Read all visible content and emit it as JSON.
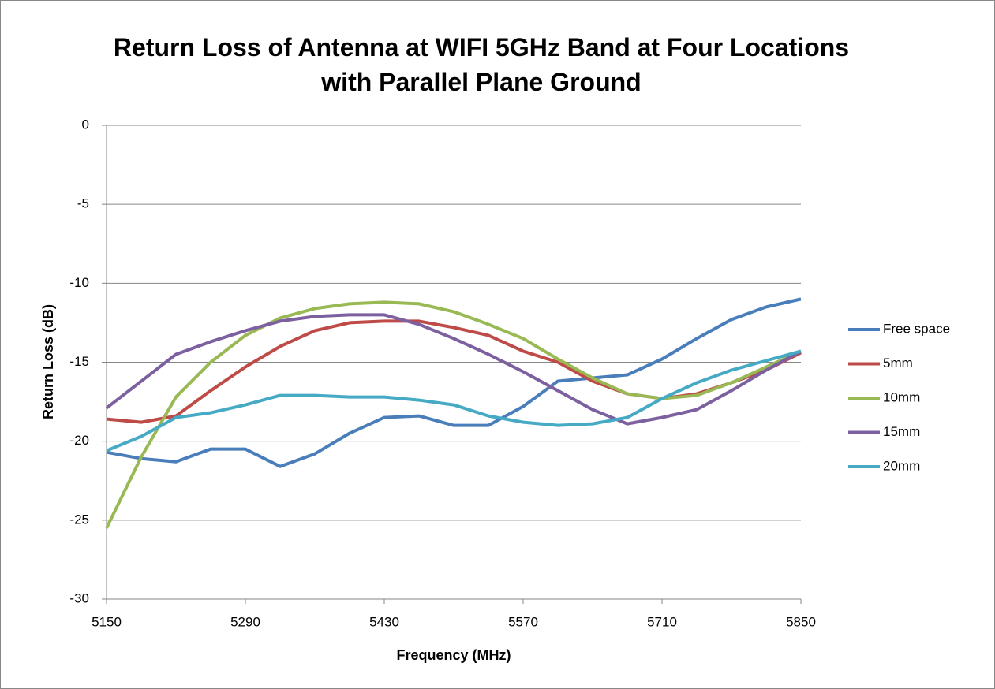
{
  "chart_data": {
    "type": "line",
    "title": "Return Loss of Antenna at WIFI 5GHz Band at Four Locations with Parallel Plane Ground",
    "x_label": "Frequency (MHz)",
    "y_label": "Return Loss (dB)",
    "x": [
      5150,
      5185,
      5220,
      5255,
      5290,
      5325,
      5360,
      5395,
      5430,
      5465,
      5500,
      5535,
      5570,
      5605,
      5640,
      5675,
      5710,
      5745,
      5780,
      5815,
      5850
    ],
    "series": [
      {
        "name": "Free space",
        "color": "#4a7ebb",
        "values": [
          -20.7,
          -21.1,
          -21.3,
          -20.5,
          -20.5,
          -21.6,
          -20.8,
          -19.5,
          -18.5,
          -18.4,
          -19.0,
          -19.0,
          -17.8,
          -16.2,
          -16.0,
          -15.8,
          -14.8,
          -13.5,
          -12.3,
          -11.5,
          -11.0
        ]
      },
      {
        "name": "5mm",
        "color": "#be4b48",
        "values": [
          -18.6,
          -18.8,
          -18.4,
          -16.8,
          -15.3,
          -14.0,
          -13.0,
          -12.5,
          -12.4,
          -12.4,
          -12.8,
          -13.3,
          -14.3,
          -15.0,
          -16.2,
          -17.0,
          -17.3,
          -17.0,
          -16.3,
          -15.5,
          -14.4
        ]
      },
      {
        "name": "10mm",
        "color": "#98b954",
        "values": [
          -25.5,
          -21.0,
          -17.2,
          -15.0,
          -13.3,
          -12.2,
          -11.6,
          -11.3,
          -11.2,
          -11.3,
          -11.8,
          -12.6,
          -13.5,
          -14.8,
          -16.0,
          -17.0,
          -17.3,
          -17.1,
          -16.3,
          -15.3,
          -14.3
        ]
      },
      {
        "name": "15mm",
        "color": "#7d60a0",
        "values": [
          -17.9,
          -16.2,
          -14.5,
          -13.7,
          -13.0,
          -12.4,
          -12.1,
          -12.0,
          -12.0,
          -12.6,
          -13.5,
          -14.5,
          -15.6,
          -16.8,
          -18.0,
          -18.9,
          -18.5,
          -18.0,
          -16.8,
          -15.5,
          -14.3
        ]
      },
      {
        "name": "20mm",
        "color": "#46aac5",
        "values": [
          -20.6,
          -19.7,
          -18.5,
          -18.2,
          -17.7,
          -17.1,
          -17.1,
          -17.2,
          -17.2,
          -17.4,
          -17.7,
          -18.4,
          -18.8,
          -19.0,
          -18.9,
          -18.5,
          -17.3,
          -16.3,
          -15.5,
          -14.9,
          -14.3
        ]
      }
    ],
    "xlim": [
      5150,
      5850
    ],
    "xticks": [
      5150,
      5290,
      5430,
      5570,
      5710,
      5850
    ],
    "ylim": [
      -30,
      0
    ],
    "yticks": [
      -30,
      -25,
      -20,
      -15,
      -10,
      -5,
      0
    ],
    "grid": true,
    "legend": "right"
  }
}
